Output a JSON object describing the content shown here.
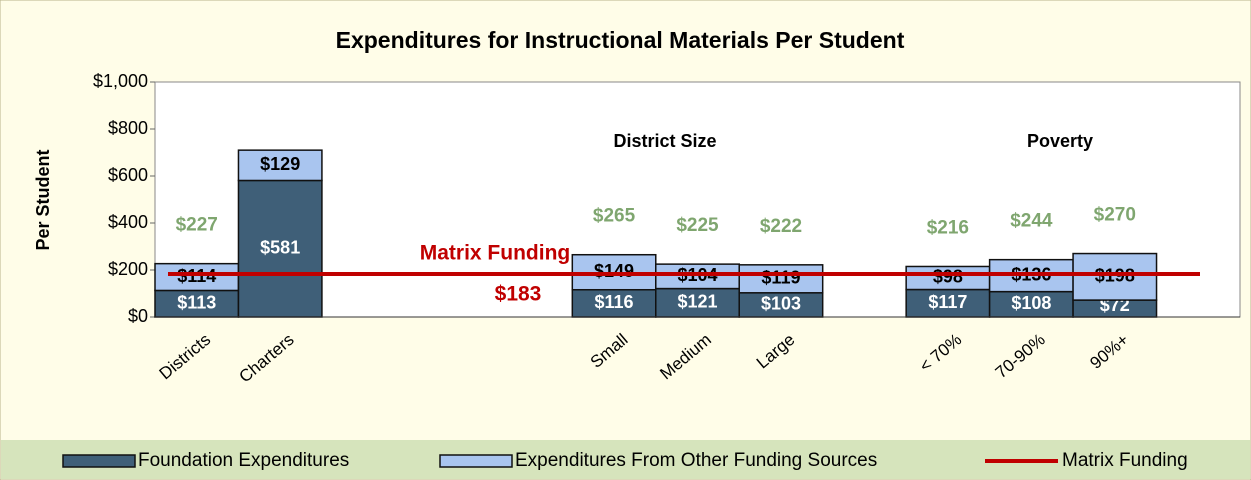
{
  "chart_data": {
    "type": "bar",
    "stacked": true,
    "title": "Expenditures for Instructional Materials Per Student",
    "y_label": "Per Student",
    "categories": [
      "Districts",
      "Charters",
      null,
      null,
      null,
      "Small",
      "Medium",
      "Large",
      null,
      "< 70%",
      "70-90%",
      "90%+",
      null
    ],
    "series": [
      {
        "name": "Foundation Expenditures",
        "color": "#3f5f78",
        "values": [
          113,
          581,
          null,
          null,
          null,
          116,
          121,
          103,
          null,
          117,
          108,
          72,
          null
        ],
        "value_labels": [
          "$113",
          "$581",
          null,
          null,
          null,
          "$116",
          "$121",
          "$103",
          null,
          "$117",
          "$108",
          "$72",
          null
        ]
      },
      {
        "name": "Expenditures From Other Funding Sources",
        "color": "#a9c5ef",
        "values": [
          114,
          129,
          null,
          null,
          null,
          149,
          104,
          119,
          null,
          98,
          136,
          198,
          null
        ],
        "value_labels": [
          "$114",
          "$129",
          null,
          null,
          null,
          "$149",
          "$104",
          "$119",
          null,
          "$98",
          "$136",
          "$198",
          null
        ]
      }
    ],
    "totals": [
      227,
      null,
      null,
      null,
      null,
      265,
      225,
      222,
      null,
      216,
      244,
      270,
      null
    ],
    "total_labels": [
      "$227",
      null,
      null,
      null,
      null,
      "$265",
      "$225",
      "$222",
      null,
      "$216",
      "$244",
      "$270",
      null
    ],
    "reference_line": {
      "name": "Matrix Funding",
      "value": 183,
      "label": "$183",
      "color": "#c00000"
    },
    "group_labels": [
      "District Size",
      "Poverty"
    ],
    "ylim": [
      0,
      1000
    ],
    "yticks": [
      0,
      {
        "value": 200,
        "label": "$200"
      },
      {
        "value": 400,
        "label": "$400"
      },
      {
        "value": 600,
        "label": "$600"
      },
      {
        "value": 800,
        "label": "$800"
      },
      {
        "value": 1000,
        "label": "$1,000"
      }
    ],
    "ytick_zero_label": "$0"
  }
}
